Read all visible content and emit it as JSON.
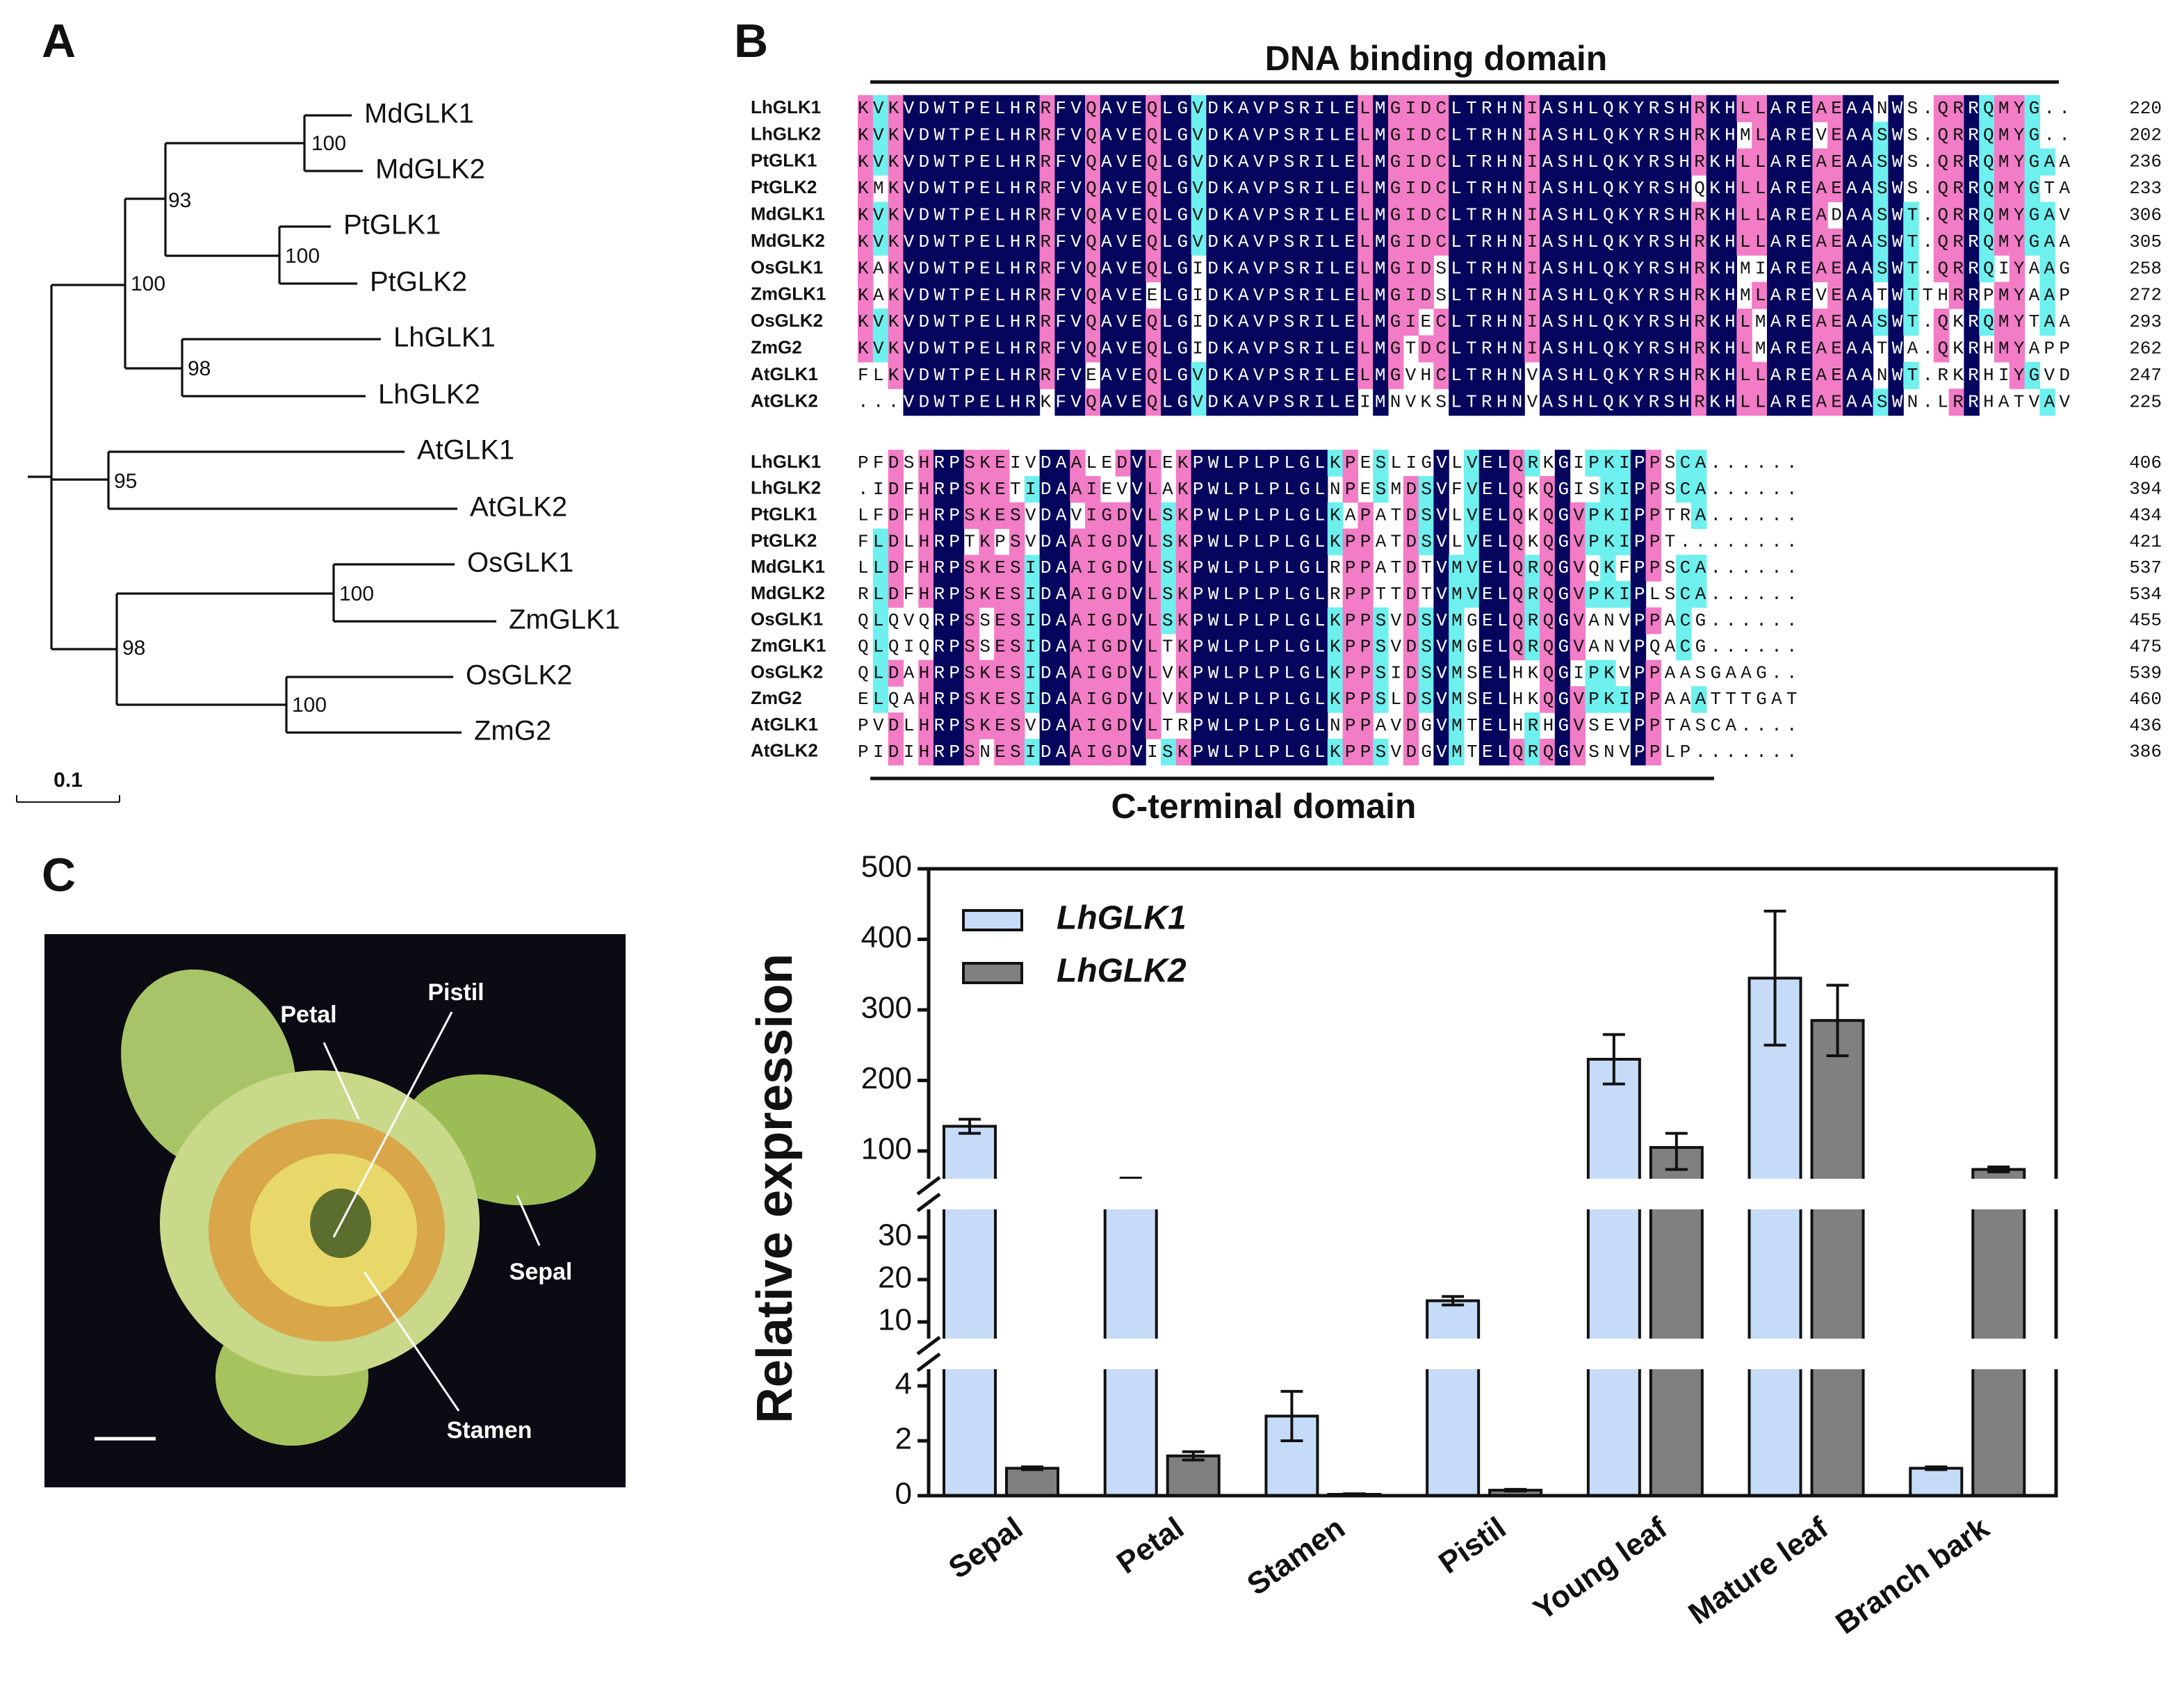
{
  "panel_labels": [
    "A",
    "B",
    "C"
  ],
  "tree": {
    "leaves": [
      {
        "name": "MdGLK1",
        "color": "#111111"
      },
      {
        "name": "MdGLK2",
        "color": "#111111"
      },
      {
        "name": "PtGLK1",
        "color": "#111111"
      },
      {
        "name": "PtGLK2",
        "color": "#111111"
      },
      {
        "name": "LhGLK1",
        "color": "#e0282e"
      },
      {
        "name": "LhGLK2",
        "color": "#e0282e"
      },
      {
        "name": "AtGLK1",
        "color": "#111111"
      },
      {
        "name": "AtGLK2",
        "color": "#111111"
      },
      {
        "name": "OsGLK1",
        "color": "#111111"
      },
      {
        "name": "ZmGLK1",
        "color": "#111111"
      },
      {
        "name": "OsGLK2",
        "color": "#111111"
      },
      {
        "name": "ZmG2",
        "color": "#111111"
      }
    ],
    "bootstrap": [
      100,
      93,
      100,
      100,
      98,
      95,
      100,
      100,
      98
    ],
    "scale": "0.1"
  },
  "alignment": {
    "top_domain": "DNA binding domain",
    "bottom_domain": "C-terminal domain",
    "blocks": [
      {
        "rows": [
          {
            "name": "LhGLK1",
            "sequence": "KVKVDWTPELHRRFVQAVEQLGVDKAVPSRILELMGIDCLTRHNIASHLQKYRSHRKHLLAREAEAANWS.QRRQMYG..",
            "end": 220
          },
          {
            "name": "LhGLK2",
            "sequence": "KVKVDWTPELHRRFVQAVEQLGVDKAVPSRILELMGIDCLTRHNIASHLQKYRSHRKHMLAREVEAASWS.QRRQMYG..",
            "end": 202
          },
          {
            "name": "PtGLK1",
            "sequence": "KVKVDWTPELHRRFVQAVEQLGVDKAVPSRILELMGIDCLTRHNIASHLQKYRSHRKHLLAREAEAASWS.QRRQMYGAA",
            "end": 236
          },
          {
            "name": "PtGLK2",
            "sequence": "KMKVDWTPELHRRFVQAVEQLGVDKAVPSRILELMGIDCLTRHNIASHLQKYRSHQKHLLAREAEAASWS.QRRQMYGTA",
            "end": 233
          },
          {
            "name": "MdGLK1",
            "sequence": "KVKVDWTPELHRRFVQAVEQLGVDKAVPSRILELMGIDCLTRHNIASHLQKYRSHRKHLLAREADAASWT.QRRQMYGAV",
            "end": 306
          },
          {
            "name": "MdGLK2",
            "sequence": "KVKVDWTPELHRRFVQAVEQLGVDKAVPSRILELMGIDCLTRHNIASHLQKYRSHRKHLLAREAEAASWT.QRRQMYGAA",
            "end": 305
          },
          {
            "name": "OsGLK1",
            "sequence": "KAKVDWTPELHRRFVQAVEQLGIDKAVPSRILELMGIDSLTRHNIASHLQKYRSHRKHMIAREAEAASWT.QRRQIYAAG",
            "end": 258
          },
          {
            "name": "ZmGLK1",
            "sequence": "KAKVDWTPELHRRFVQAVEELGIDKAVPSRILELMGIDSLTRHNIASHLQKYRSHRKHMLAREVEAATWTTHRRPMYAAP",
            "end": 272
          },
          {
            "name": "OsGLK2",
            "sequence": "KVKVDWTPELHRRFVQAVEQLGIDKAVPSRILELMGIECLTRHNIASHLQKYRSHRKHLMAREAEAASWT.QKRQMYTAA",
            "end": 293
          },
          {
            "name": "ZmG2",
            "sequence": "KVKVDWTPELHRRFVQAVEQLGIDKAVPSRILELMGTDCLTRHNIASHLQKYRSHRKHLMAREAEAATWA.QKRHMYAPP",
            "end": 262
          },
          {
            "name": "AtGLK1",
            "sequence": "FLKVDWTPELHRRFVEAVEQLGVDKAVPSRILELMGVHCLTRHNVASHLQKYRSHRKHLLAREAEAANWT.RKRHIYGVD",
            "end": 247
          },
          {
            "name": "AtGLK2",
            "sequence": "...VDWTPELHRKFVQAVEQLGVDKAVPSRILEIMNVKSLTRHNVASHLQKYRSHRKHLLAREAEAASWN.LRRHATVAV",
            "end": 225
          }
        ]
      },
      {
        "rows": [
          {
            "name": "LhGLK1",
            "sequence": "PFDSHRPSKEIVDAALEDVLEKPWLPLPLGLKPESLIGVLVELQRKGIPKIPPSCA......",
            "end": 406
          },
          {
            "name": "LhGLK2",
            "sequence": ".IDFHRPSKETIDAAIEVVLAKPWLPLPLGLNPESMDSVFVELQKQGISKIPPSCA......",
            "end": 394
          },
          {
            "name": "PtGLK1",
            "sequence": "LFDFHRPSKESVDAVIGDVLSKPWLPLPLGLKAPATDSVLVELQKQGVPKIPPTRA......",
            "end": 434
          },
          {
            "name": "PtGLK2",
            "sequence": "FLDLHRPTKPSVDAAIGDVLSKPWLPLPLGLKPPATDSVLVELQKQGVPKIPPT........",
            "end": 421
          },
          {
            "name": "MdGLK1",
            "sequence": "LLDFHRPSKESIDAAIGDVLSKPWLPLPLGLRPPATDTVMVELQRQGVQKFPPSCA......",
            "end": 537
          },
          {
            "name": "MdGLK2",
            "sequence": "RLDFHRPSKESIDAAIGDVLSKPWLPLPLGLRPPTTDTVMVELQRQGVPKIPLSCA......",
            "end": 534
          },
          {
            "name": "OsGLK1",
            "sequence": "QLQVQRPSSESIDAAIGDVLSKPWLPLPLGLKPPSVDSVMGELQRQGVANVPPACG......",
            "end": 455
          },
          {
            "name": "ZmGLK1",
            "sequence": "QLQIQRPSSESIDAAIGDVLTKPWLPLPLGLKPPSVDSVMGELQRQGVANVPQACG......",
            "end": 475
          },
          {
            "name": "OsGLK2",
            "sequence": "QLDAHRPSKESIDAAIGDVLVKPWLPLPLGLKPPSIDSVMSELHKQGIPKVPPAASGAAG..",
            "end": 539
          },
          {
            "name": "ZmG2",
            "sequence": "ELQAHRPSKESIDAAIGDVLVKPWLPLPLGLKPPSLDSVMSELHKQGVPKIPPAAATTTGAT",
            "end": 460
          },
          {
            "name": "AtGLK1",
            "sequence": "PVDLHRPSKESVDAAIGDVLTRPWLPLPLGLNPPAVDGVMTELHRHGVSEVPPTASCA....",
            "end": 436
          },
          {
            "name": "AtGLK2",
            "sequence": "PIDIHRPSNESIDAAIGDVISKPWLPLPLGLKPPSVDGVMTELQRQGVSNVPPLP.......",
            "end": 386
          }
        ]
      }
    ]
  },
  "photo": {
    "labels": [
      "Petal",
      "Pistil",
      "Sepal",
      "Stamen"
    ]
  },
  "chart_data": {
    "type": "bar",
    "ylabel": "Relative expression",
    "categories": [
      "Sepal",
      "Petal",
      "Stamen",
      "Pistil",
      "Young leaf",
      "Mature leaf",
      "Branch bark"
    ],
    "series": [
      {
        "name": "LhGLK1",
        "color": "#c6dbf7",
        "values": [
          135,
          70,
          2.9,
          15,
          230,
          345,
          1.0
        ],
        "errors": [
          10,
          8,
          0.9,
          1,
          35,
          95,
          0.05
        ]
      },
      {
        "name": "LhGLK2",
        "color": "#808080",
        "values": [
          1.0,
          1.45,
          0.05,
          0.2,
          105,
          285,
          85
        ],
        "errors": [
          0.05,
          0.15,
          0.02,
          0.03,
          20,
          50,
          2
        ]
      }
    ],
    "ylim": [
      0,
      500
    ],
    "y_segments": [
      [
        0,
        4
      ],
      [
        10,
        30
      ],
      [
        100,
        500
      ]
    ],
    "yticks": [
      0,
      2,
      4,
      10,
      20,
      30,
      100,
      200,
      300,
      400,
      500
    ],
    "legend": "upper left"
  }
}
